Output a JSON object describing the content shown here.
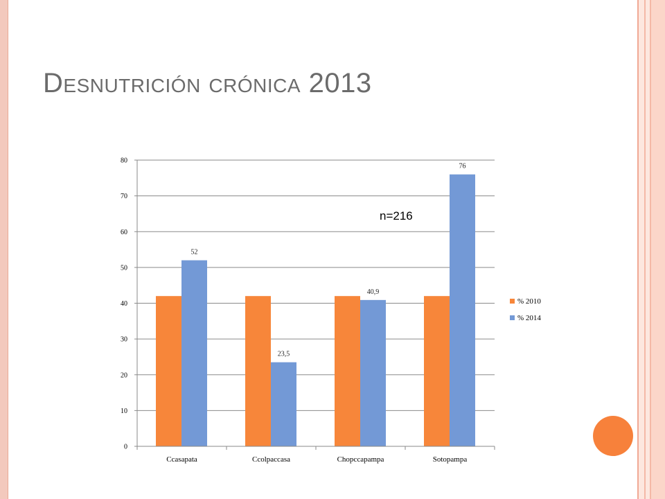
{
  "slide": {
    "title": "Desnutrición crónica 2013"
  },
  "chart_data": {
    "type": "bar",
    "categories": [
      "Ccasapata",
      "Ccolpaccasa",
      "Chopccapampa",
      "Sotopampa"
    ],
    "series": [
      {
        "name": "% 2010",
        "values": [
          42,
          42,
          42,
          42
        ],
        "color": "#f7863a",
        "labels": [
          null,
          null,
          null,
          null
        ]
      },
      {
        "name": "% 2014",
        "values": [
          52,
          23.5,
          40.9,
          76
        ],
        "color": "#7399d6",
        "labels": [
          "52",
          "23,5",
          "40,9",
          "76"
        ]
      }
    ],
    "ylim": [
      0,
      80
    ],
    "yticks": [
      "0",
      "10",
      "20",
      "30",
      "40",
      "50",
      "60",
      "70",
      "80"
    ],
    "grid": true,
    "legend_position": "right",
    "annotation": "n=216"
  }
}
